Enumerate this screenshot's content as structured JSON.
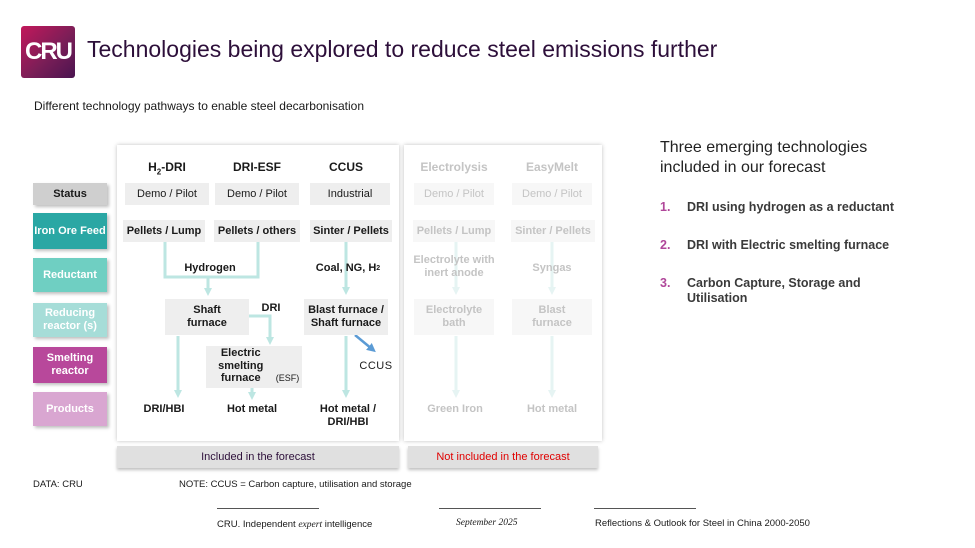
{
  "header": {
    "logo_text": "CRU",
    "title": "Technologies being explored to reduce steel emissions further",
    "subtitle": "Different technology pathways to enable steel decarbonisation"
  },
  "row_labels": [
    {
      "label": "Status",
      "bg": "#cfcfcf",
      "fg": "#1a1a1a"
    },
    {
      "label": "Iron Ore Feed",
      "bg": "#2aa7a4",
      "fg": "#ffffff"
    },
    {
      "label": "Reductant",
      "bg": "#6fcfc2",
      "fg": "#ffffff"
    },
    {
      "label": "Reducing reactor (s)",
      "bg": "#a6ddd8",
      "fg": "#ffffff"
    },
    {
      "label": "Smelting reactor",
      "bg": "#b8489b",
      "fg": "#ffffff"
    },
    {
      "label": "Products",
      "bg": "#d9a6d1",
      "fg": "#ffffff"
    }
  ],
  "columns": {
    "h2dri": {
      "head_prefix": "H",
      "head_sub": "2",
      "head_suffix": "-DRI",
      "status": "Demo / Pilot",
      "feed": "Pellets / Lump",
      "reducing": "Shaft furnace",
      "product": "DRI/HBI"
    },
    "driesf": {
      "head": "DRI-ESF",
      "status": "Demo / Pilot",
      "feed": "Pellets / others",
      "dri_label": "DRI",
      "smelting": "Electric smelting furnace",
      "smelting_abbr": "(ESF)",
      "product": "Hot metal"
    },
    "shared_reductant": "Hydrogen",
    "ccus": {
      "head": "CCUS",
      "status": "Industrial",
      "feed": "Sinter / Pellets",
      "reductant_prefix": "Coal, NG, H",
      "reductant_sub": "2",
      "reducing": "Blast furnace / Shaft furnace",
      "capture": "CCUS",
      "product": "Hot metal / DRI/HBI"
    },
    "electrolysis": {
      "head": "Electrolysis",
      "status": "Demo / Pilot",
      "feed": "Pellets / Lump",
      "reductant": "Electrolyte with inert anode",
      "reducing": "Electrolyte bath",
      "product": "Green Iron"
    },
    "easymelt": {
      "head": "EasyMelt",
      "status": "Demo / Pilot",
      "feed": "Sinter / Pellets",
      "reductant": "Syngas",
      "reducing": "Blast furnace",
      "product": "Hot metal"
    }
  },
  "bars": {
    "included": "Included in the forecast",
    "not_included": "Not included in the forecast"
  },
  "right_panel": {
    "heading": "Three emerging technologies included in our forecast",
    "items": [
      {
        "num": "1.",
        "text": "DRI using hydrogen as a reductant"
      },
      {
        "num": "2.",
        "text": "DRI with Electric smelting furnace"
      },
      {
        "num": "3.",
        "text": "Carbon Capture, Storage and Utilisation"
      }
    ]
  },
  "notes": {
    "source": "DATA: CRU",
    "note": "NOTE: CCUS = Carbon capture, utilisation and storage"
  },
  "footer": {
    "company_prefix": "CRU. Independent ",
    "company_italic": "expert",
    "company_suffix": " intelligence",
    "date": "September 2025",
    "report": "Reflections & Outlook for Steel in China 2000-2050"
  },
  "colors": {
    "arrow": "#bde6e2",
    "ccus_arrow": "#5b9bd5",
    "not_included_text": "#e00000",
    "included_text": "#2d0f3a",
    "accent_num": "#b0479a"
  }
}
